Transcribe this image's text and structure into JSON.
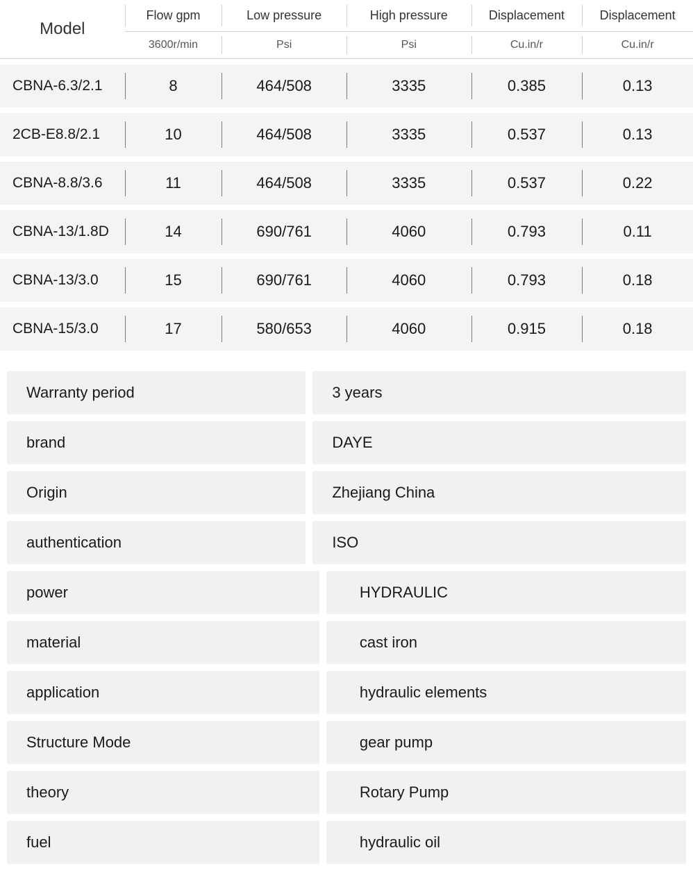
{
  "spec_table": {
    "header_row1": [
      "Model",
      "Flow gpm",
      "Low pressure",
      "High pressure",
      "Displacement",
      "Displacement"
    ],
    "header_row2": [
      "3600r/min",
      "Psi",
      "Psi",
      "Cu.in/r",
      "Cu.in/r"
    ],
    "columns": [
      "model",
      "flow",
      "low_pressure",
      "high_pressure",
      "disp1",
      "disp2"
    ],
    "rows": [
      {
        "model": "CBNA-6.3/2.1",
        "flow": "8",
        "low_pressure": "464/508",
        "high_pressure": "3335",
        "disp1": "0.385",
        "disp2": "0.13"
      },
      {
        "model": "2CB-E8.8/2.1",
        "flow": "10",
        "low_pressure": "464/508",
        "high_pressure": "3335",
        "disp1": "0.537",
        "disp2": "0.13"
      },
      {
        "model": "CBNA-8.8/3.6",
        "flow": "11",
        "low_pressure": "464/508",
        "high_pressure": "3335",
        "disp1": "0.537",
        "disp2": "0.22"
      },
      {
        "model": "CBNA-13/1.8D",
        "flow": "14",
        "low_pressure": "690/761",
        "high_pressure": "4060",
        "disp1": "0.793",
        "disp2": "0.11"
      },
      {
        "model": "CBNA-13/3.0",
        "flow": "15",
        "low_pressure": "690/761",
        "high_pressure": "4060",
        "disp1": "0.793",
        "disp2": "0.18"
      },
      {
        "model": "CBNA-15/3.0",
        "flow": "17",
        "low_pressure": "580/653",
        "high_pressure": "4060",
        "disp1": "0.915",
        "disp2": "0.18"
      }
    ],
    "col_widths": [
      "18%",
      "14%",
      "18%",
      "18%",
      "16%",
      "16%"
    ]
  },
  "attributes": [
    {
      "label": "Warranty period",
      "value": "3 years",
      "indent": false
    },
    {
      "label": "brand",
      "value": "DAYE",
      "indent": false
    },
    {
      "label": "Origin",
      "value": "Zhejiang China",
      "indent": false
    },
    {
      "label": "authentication",
      "value": "ISO",
      "indent": false
    },
    {
      "label": "power",
      "value": "HYDRAULIC",
      "indent": true
    },
    {
      "label": "material",
      "value": "cast iron",
      "indent": true
    },
    {
      "label": "application",
      "value": "hydraulic elements",
      "indent": true
    },
    {
      "label": "Structure Mode",
      "value": "gear pump",
      "indent": true
    },
    {
      "label": "theory",
      "value": "Rotary Pump",
      "indent": true
    },
    {
      "label": "fuel",
      "value": "hydraulic oil",
      "indent": true
    }
  ],
  "colors": {
    "row_bg": "#f4f4f6",
    "attr_bg": "#f1f1f3",
    "text": "#1a1a1a",
    "divider": "#7a7a7a",
    "header_divider": "#cfcfcf"
  }
}
